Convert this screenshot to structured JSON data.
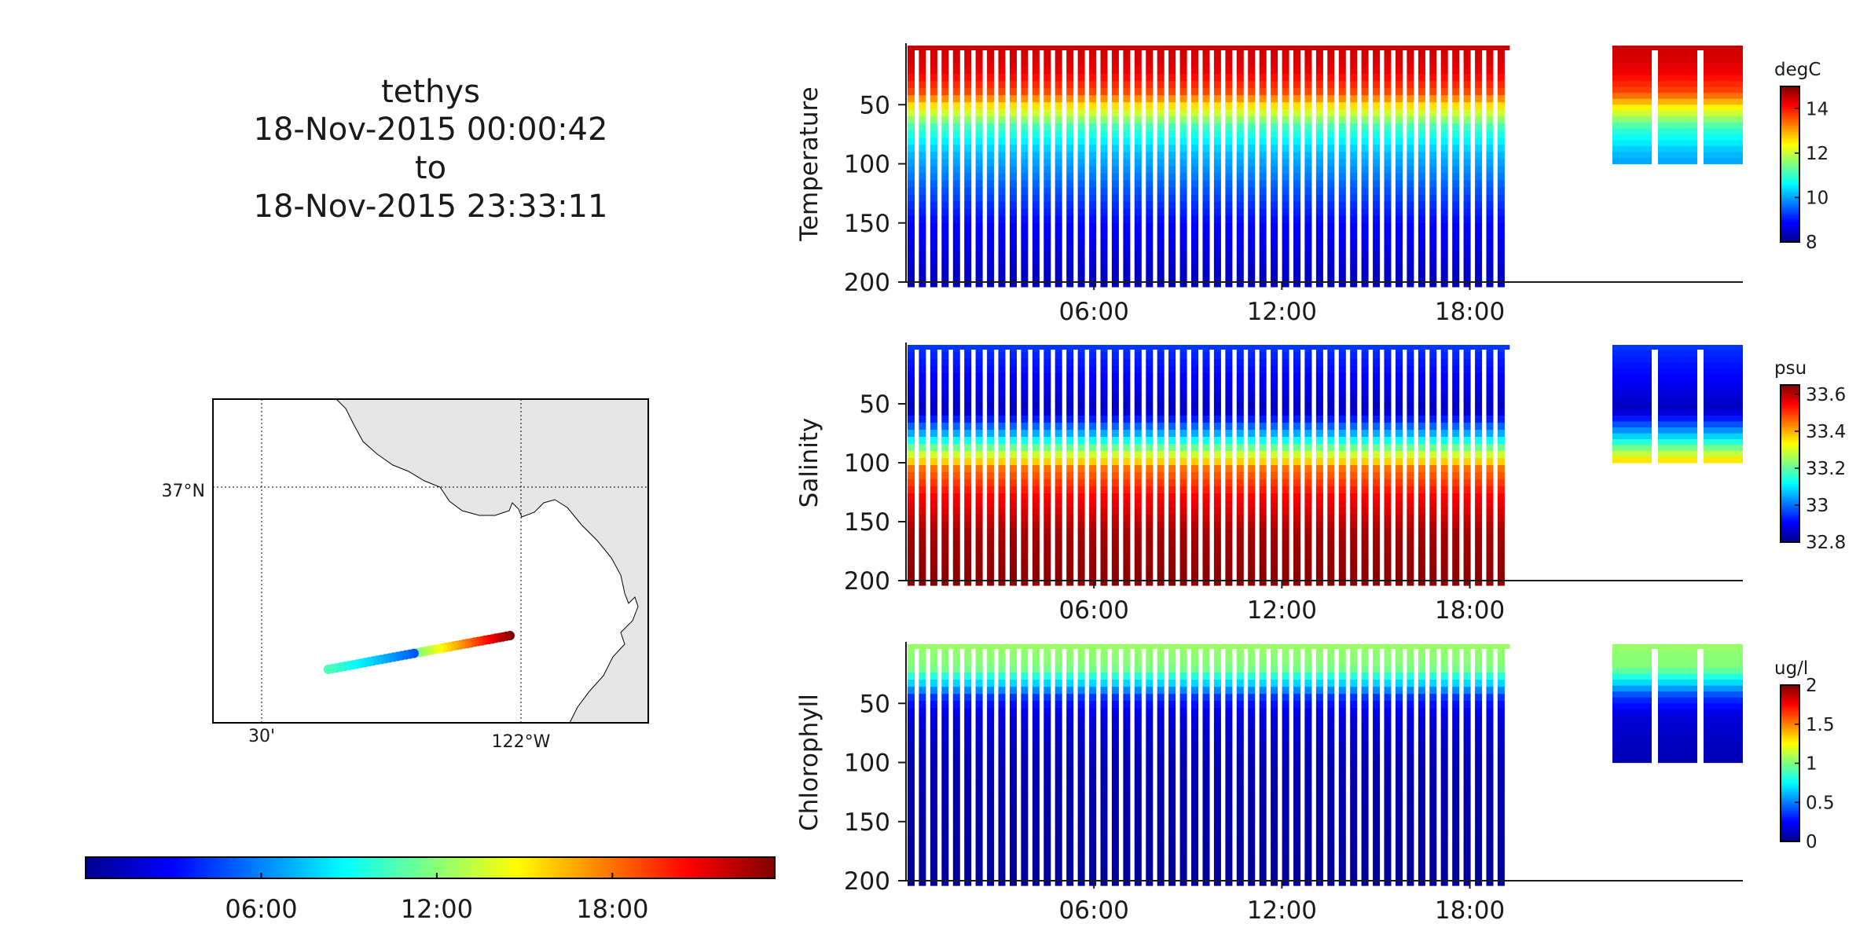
{
  "header": {
    "vehicle": "tethys",
    "start": "18-Nov-2015 00:00:42",
    "to": "to",
    "end": "18-Nov-2015 23:33:11"
  },
  "map": {
    "lat_label": "37°N",
    "lon_labels": [
      "30'",
      "122°W"
    ],
    "track_colormap": "jet"
  },
  "time_colorbar": {
    "ticks": [
      "06:00",
      "12:00",
      "18:00"
    ],
    "range_hours": [
      0,
      23.55
    ]
  },
  "colors": {
    "land": "#e6e6e6",
    "jet_low": "#00008f",
    "jet_high": "#800000"
  },
  "chart_data": [
    {
      "type": "scatter",
      "name": "section",
      "ylabel": "Temperature",
      "unit": "degC",
      "xticks": [
        "06:00",
        "12:00",
        "18:00"
      ],
      "yticks": [
        50,
        100,
        150,
        200
      ],
      "ylim": [
        0,
        200
      ],
      "yo_profiles": 53,
      "dive_depth_max": 200,
      "data_end_hour": 19.2,
      "colorbar": {
        "ticks": [
          14,
          12,
          10,
          8
        ],
        "range": [
          8,
          15
        ]
      },
      "profile": [
        [
          0,
          14.5
        ],
        [
          20,
          14.3
        ],
        [
          40,
          13.6
        ],
        [
          55,
          12.2
        ],
        [
          70,
          11.0
        ],
        [
          90,
          10.2
        ],
        [
          120,
          9.5
        ],
        [
          150,
          8.9
        ],
        [
          200,
          8.4
        ]
      ]
    },
    {
      "type": "scatter",
      "name": "section",
      "ylabel": "Salinity",
      "unit": "psu",
      "xticks": [
        "06:00",
        "12:00",
        "18:00"
      ],
      "yticks": [
        50,
        100,
        150,
        200
      ],
      "ylim": [
        0,
        200
      ],
      "yo_profiles": 53,
      "dive_depth_max": 200,
      "data_end_hour": 19.2,
      "colorbar": {
        "ticks": [
          33.6,
          33.4,
          33.2,
          33,
          32.8
        ],
        "range": [
          32.8,
          33.65
        ]
      },
      "profile": [
        [
          0,
          32.95
        ],
        [
          30,
          32.9
        ],
        [
          55,
          32.85
        ],
        [
          75,
          33.05
        ],
        [
          90,
          33.25
        ],
        [
          105,
          33.45
        ],
        [
          130,
          33.55
        ],
        [
          160,
          33.62
        ],
        [
          200,
          33.64
        ]
      ]
    },
    {
      "type": "scatter",
      "name": "section",
      "ylabel": "Chlorophyll",
      "unit": "ug/l",
      "xticks": [
        "06:00",
        "12:00",
        "18:00"
      ],
      "yticks": [
        50,
        100,
        150,
        200
      ],
      "ylim": [
        0,
        200
      ],
      "yo_profiles": 53,
      "dive_depth_max": 200,
      "data_end_hour": 19.2,
      "colorbar": {
        "ticks": [
          2,
          1.5,
          1,
          0.5,
          0
        ],
        "range": [
          0,
          2
        ]
      },
      "profile": [
        [
          0,
          1.05
        ],
        [
          20,
          1.0
        ],
        [
          32,
          0.7
        ],
        [
          45,
          0.35
        ],
        [
          60,
          0.18
        ],
        [
          100,
          0.1
        ],
        [
          200,
          0.05
        ]
      ]
    }
  ]
}
